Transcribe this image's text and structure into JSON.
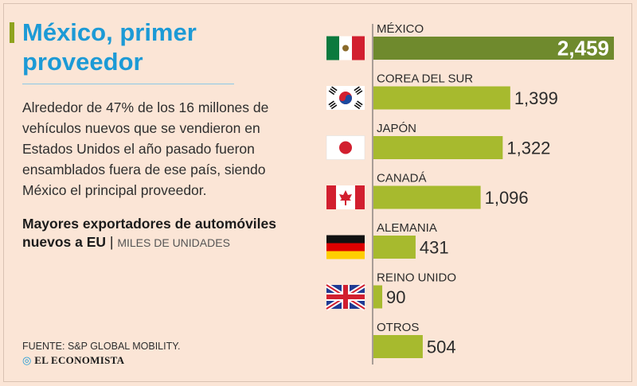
{
  "header": {
    "title": "México, primer proveedor",
    "intro": "Alrededor de 47% de los 16 millones de vehículos nuevos que se vendieron en Estados Unidos el año pasado fueron ensamblados fuera de ese país, siendo México el principal proveedor.",
    "subtitle": "Mayores exportadores de automóviles nuevos a EU",
    "subtitle_sep": " | ",
    "unit": "MILES DE UNIDADES"
  },
  "footer": {
    "source": "FUENTE: S&P GLOBAL MOBILITY.",
    "brand": "EL ECONOMISTA",
    "brand_mark": "◎"
  },
  "colors": {
    "bar": "#a7ba2e",
    "bar_highlight": "#6f8a2d",
    "axis": "#555555",
    "label": "#2b2b2b",
    "value": "#2b2b2b",
    "value_highlight": "#ffffff"
  },
  "chart_data": {
    "type": "bar",
    "orientation": "horizontal",
    "categories": [
      "MÉXICO",
      "COREA DEL SUR",
      "JAPÓN",
      "CANADÁ",
      "ALEMANIA",
      "REINO UNIDO",
      "OTROS"
    ],
    "values": [
      2459,
      1399,
      1322,
      1096,
      431,
      90,
      504
    ],
    "value_labels": [
      "2,459",
      "1,399",
      "1,322",
      "1,096",
      "431",
      "90",
      "504"
    ],
    "flags": [
      "mexico-flag-icon",
      "south-korea-flag-icon",
      "japan-flag-icon",
      "canada-flag-icon",
      "germany-flag-icon",
      "uk-flag-icon",
      ""
    ],
    "highlight_index": 0,
    "xlim": [
      0,
      2459
    ],
    "grid": false,
    "legend": "none"
  }
}
